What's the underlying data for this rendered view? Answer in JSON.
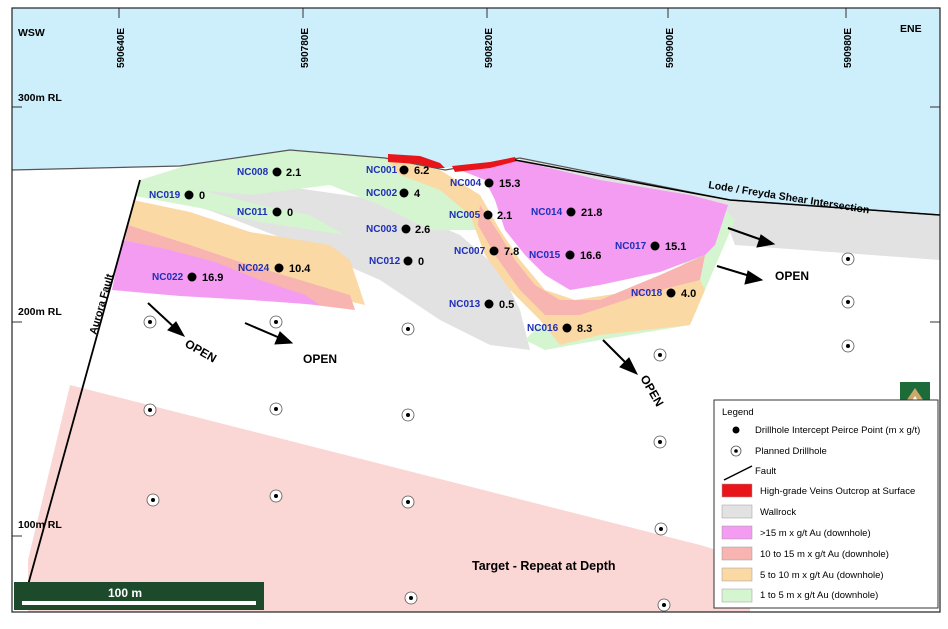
{
  "directions": {
    "left": "WSW",
    "right": "ENE"
  },
  "eastings": [
    "590640E",
    "590780E",
    "590820E",
    "590900E",
    "590980E"
  ],
  "rl_labels": [
    "300m RL",
    "200m RL",
    "100m RL"
  ],
  "features": {
    "aurora_fault": "Aurora Fault",
    "lode_shear": "Lode / Freyda Shear Intersection",
    "target": "Target - Repeat at Depth",
    "open": "OPEN"
  },
  "scale_bar": {
    "label": "100 m"
  },
  "drillholes": [
    {
      "id": "NC008",
      "value": "2.1"
    },
    {
      "id": "NC019",
      "value": "0"
    },
    {
      "id": "NC011",
      "value": "0"
    },
    {
      "id": "NC022",
      "value": "16.9"
    },
    {
      "id": "NC024",
      "value": "10.4"
    },
    {
      "id": "NC001",
      "value": "6.2"
    },
    {
      "id": "NC002",
      "value": "4"
    },
    {
      "id": "NC003",
      "value": "2.6"
    },
    {
      "id": "NC012",
      "value": "0"
    },
    {
      "id": "NC004",
      "value": "15.3"
    },
    {
      "id": "NC005",
      "value": "2.1"
    },
    {
      "id": "NC007",
      "value": "7.8"
    },
    {
      "id": "NC013",
      "value": "0.5"
    },
    {
      "id": "NC014",
      "value": "21.8"
    },
    {
      "id": "NC015",
      "value": "16.6"
    },
    {
      "id": "NC016",
      "value": "8.3"
    },
    {
      "id": "NC017",
      "value": "15.1"
    },
    {
      "id": "NC018",
      "value": "4.0"
    }
  ],
  "legend": {
    "title": "Legend",
    "items": [
      {
        "label": "Drillhole Intercept Peirce Point (m x g/t)",
        "symbol": "dot"
      },
      {
        "label": "Planned Drillhole",
        "symbol": "planned"
      },
      {
        "label": "Fault",
        "symbol": "fault"
      },
      {
        "label": "High-grade Veins Outcrop at Surface",
        "symbol": "box",
        "color": "#e8151b"
      },
      {
        "label": "Wallrock",
        "symbol": "box",
        "color": "#e2e2e2"
      },
      {
        "label": ">15 m x g/t Au (downhole)",
        "symbol": "box",
        "color": "#f39cf2"
      },
      {
        "label": "10 to 15 m x g/t Au (downhole)",
        "symbol": "box",
        "color": "#f8b4b0"
      },
      {
        "label": "5 to 10 m x g/t Au (downhole)",
        "symbol": "box",
        "color": "#fbd9a5"
      },
      {
        "label": "1 to 5 m x g/t Au (downhole)",
        "symbol": "box",
        "color": "#d4f5cf"
      }
    ]
  },
  "colors": {
    "sky": "#cdeefb",
    "high_grade": "#e8151b",
    "wallrock": "#e2e2e2",
    "gt15": "#f39cf2",
    "r10_15": "#f8b4b0",
    "r5_10": "#fbd9a5",
    "r1_5": "#d4f5cf",
    "target": "#fad6d4",
    "hole_id": "#1f2fb8",
    "scale_bg": "#1e4a2c"
  }
}
